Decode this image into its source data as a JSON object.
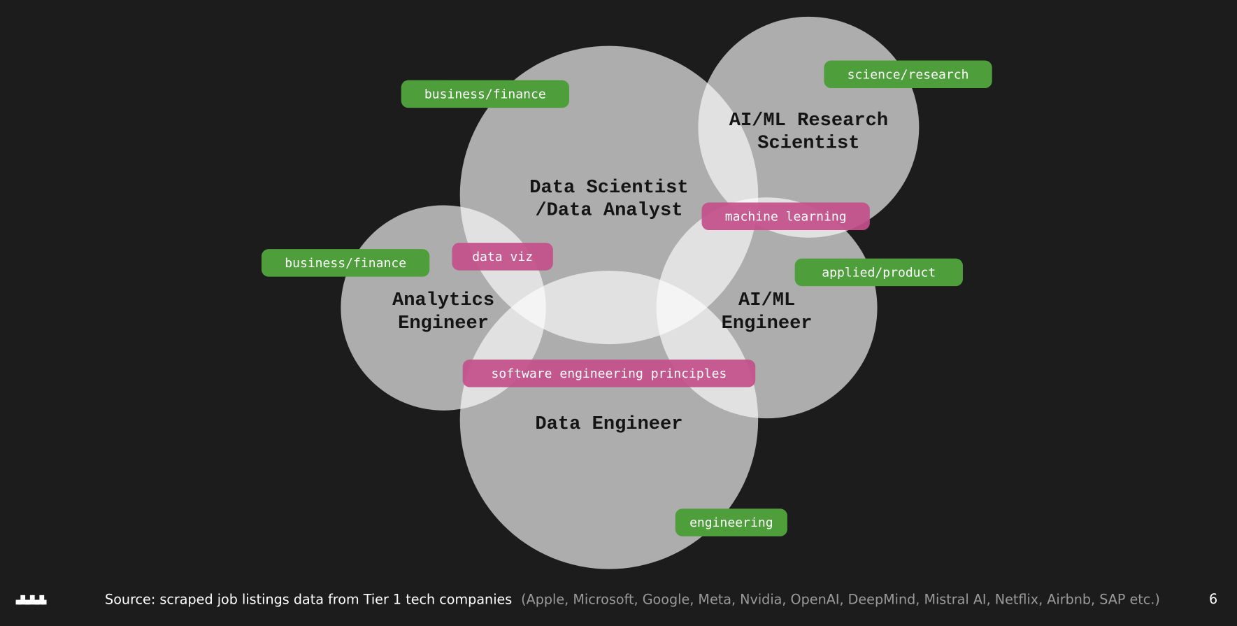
{
  "nodes": [
    {
      "lines": [
        "Data Scientist",
        "/Data Analyst"
      ]
    },
    {
      "lines": [
        "AI/ML Research",
        "Scientist"
      ]
    },
    {
      "lines": [
        "Analytics",
        "Engineer"
      ]
    },
    {
      "lines": [
        "AI/ML",
        "Engineer"
      ]
    },
    {
      "lines": [
        "Data Engineer"
      ]
    }
  ],
  "tags": [
    {
      "label": "business/finance",
      "kind": "domain"
    },
    {
      "label": "science/research",
      "kind": "domain"
    },
    {
      "label": "machine learning",
      "kind": "skill"
    },
    {
      "label": "data viz",
      "kind": "skill"
    },
    {
      "label": "business/finance",
      "kind": "domain"
    },
    {
      "label": "applied/product",
      "kind": "domain"
    },
    {
      "label": "software engineering principles",
      "kind": "skill"
    },
    {
      "label": "engineering",
      "kind": "domain"
    }
  ],
  "footer": {
    "source": "Source: scraped job listings data from Tier 1 tech companies",
    "companies": "(Apple, Microsoft, Google, Meta, Nvidia, OpenAI, DeepMind, Mistral AI, Netflix, Airbnb, SAP etc.)",
    "page": "6"
  }
}
